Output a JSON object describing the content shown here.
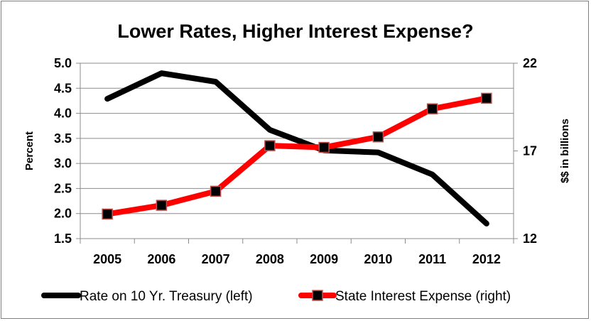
{
  "chart_data": {
    "type": "line",
    "title": "Lower Rates, Higher Interest Expense?",
    "x": [
      "2005",
      "2006",
      "2007",
      "2008",
      "2009",
      "2010",
      "2011",
      "2012"
    ],
    "y_left": {
      "label": "Percent",
      "range": [
        1.5,
        5.0
      ],
      "ticks": [
        "5.0",
        "4.5",
        "4.0",
        "3.5",
        "3.0",
        "2.5",
        "2.0",
        "1.5"
      ]
    },
    "y_right": {
      "label": "$$ in billions",
      "range": [
        12,
        22
      ],
      "ticks": [
        "22",
        "17",
        "12"
      ]
    },
    "grid": "horizontal",
    "legend_position": "bottom",
    "series": [
      {
        "name": "Rate on 10 Yr. Treasury (left)",
        "axis": "left",
        "color": "#000000",
        "marker": "none",
        "values": [
          4.29,
          4.8,
          4.63,
          3.67,
          3.26,
          3.22,
          2.78,
          1.8
        ]
      },
      {
        "name": "State Interest Expense (right)",
        "axis": "right",
        "color": "#ff0000",
        "marker": "square",
        "values": [
          13.4,
          13.9,
          14.7,
          17.3,
          17.2,
          17.8,
          19.4,
          20.0
        ]
      }
    ]
  }
}
